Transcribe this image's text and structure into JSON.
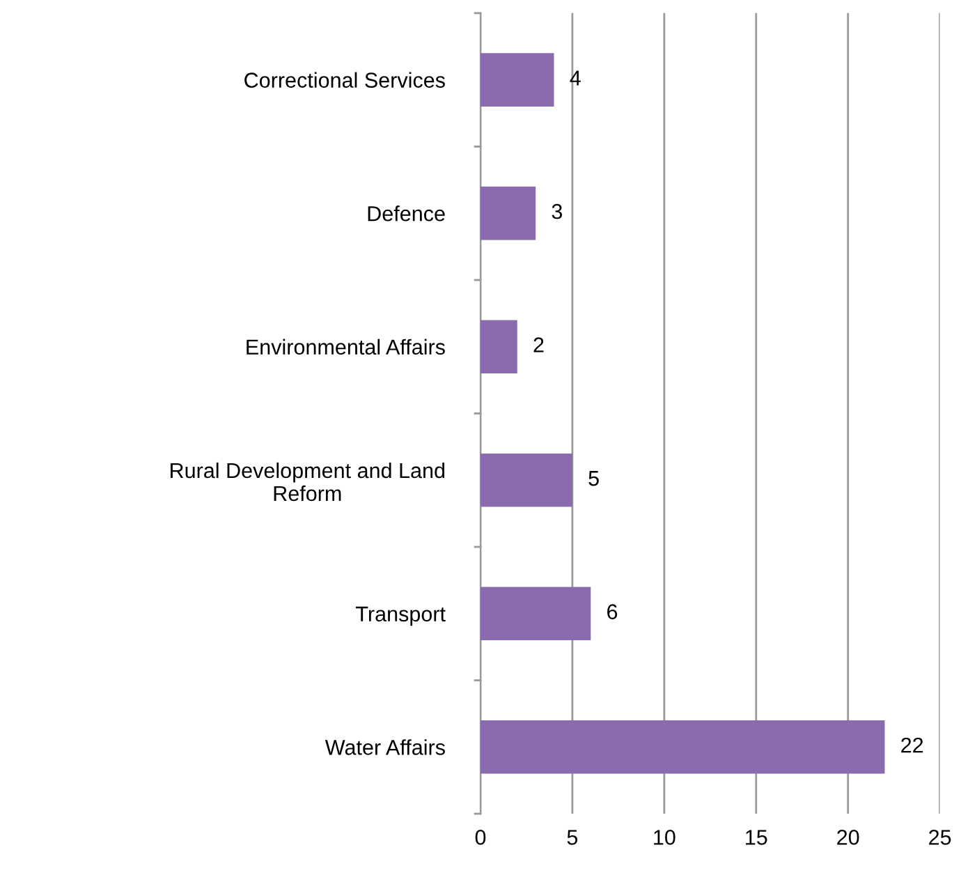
{
  "chart_data": {
    "type": "bar",
    "orientation": "horizontal",
    "categories": [
      "Correctional Services",
      "Defence",
      "Environmental Affairs",
      "Rural Development and Land Reform",
      "Transport",
      "Water Affairs"
    ],
    "values": [
      4,
      3,
      2,
      5,
      6,
      22
    ],
    "color": "#8a6cae",
    "xlim": [
      0,
      25
    ],
    "xticks": [
      0,
      5,
      10,
      15,
      20,
      25
    ],
    "grid": "x",
    "data_labels": true
  }
}
